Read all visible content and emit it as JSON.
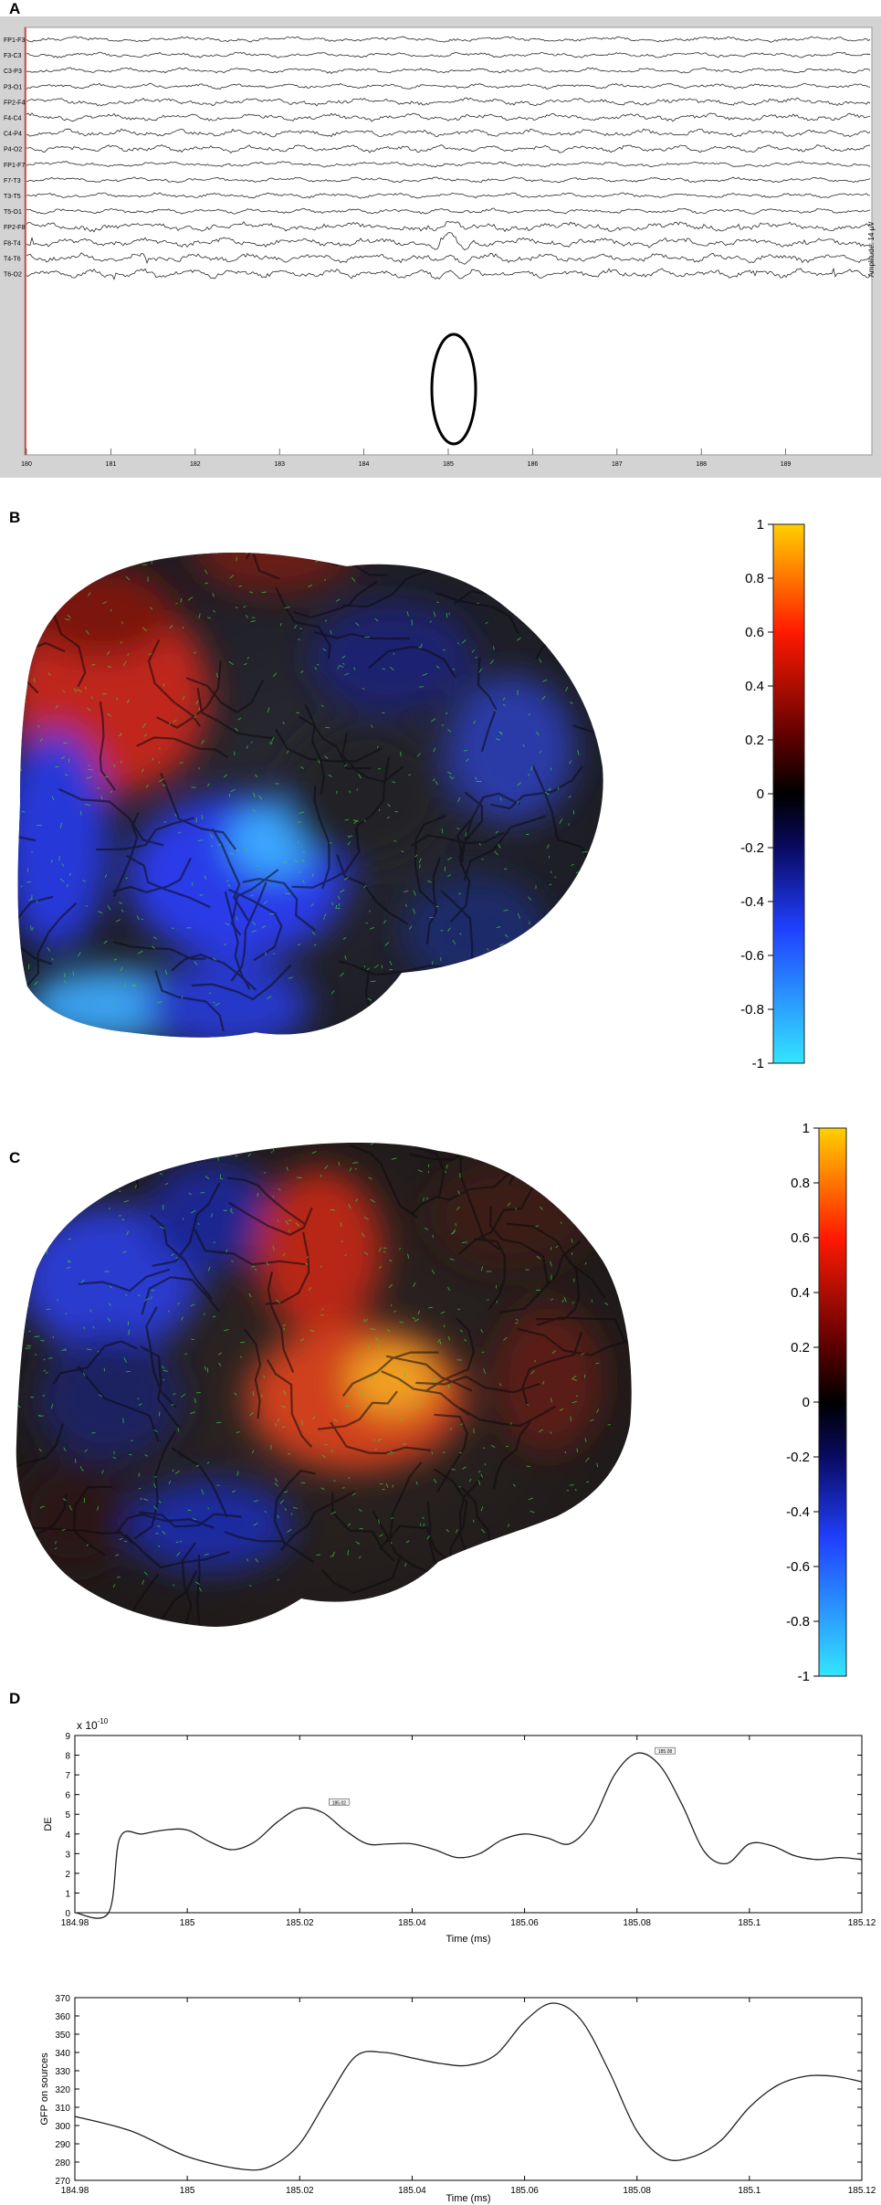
{
  "panels": {
    "a": "A",
    "b": "B",
    "c": "C",
    "d": "D"
  },
  "chart_data": [
    {
      "type": "line",
      "panel": "A",
      "channels": [
        "FP1-F3",
        "F3-C3",
        "C3-P3",
        "P3-O1",
        "FP2-F4",
        "F4-C4",
        "C4-P4",
        "P4-O2",
        "FP1-F7",
        "F7-T3",
        "T3-T5",
        "T5-O1",
        "FP2-F8",
        "F8-T4",
        "T4-T6",
        "T6-O2"
      ],
      "x_ticks": [
        "180",
        "181",
        "182",
        "183",
        "184",
        "185",
        "186",
        "187",
        "188",
        "189"
      ],
      "x_range": [
        180,
        190
      ],
      "right_label": "Amplitude: 14 µV",
      "annotation": {
        "type": "ellipse",
        "time": 185,
        "channels": [
          "FP2-F8",
          "F8-T4",
          "T4-T6"
        ]
      }
    },
    {
      "type": "heatmap",
      "panel": "B",
      "colorbar_ticks": [
        "1",
        "0.8",
        "0.6",
        "0.4",
        "0.2",
        "0",
        "-0.2",
        "-0.4",
        "-0.6",
        "-0.8",
        "-1"
      ],
      "range": [
        -1,
        1
      ],
      "colormap": [
        "#33e5ff",
        "#2040ff",
        "#0a0a60",
        "#000000",
        "#5a0000",
        "#ff1a00",
        "#ffd000"
      ]
    },
    {
      "type": "heatmap",
      "panel": "C",
      "colorbar_ticks": [
        "1",
        "0.8",
        "0.6",
        "0.4",
        "0.2",
        "0",
        "-0.2",
        "-0.4",
        "-0.6",
        "-0.8",
        "-1"
      ],
      "range": [
        -1,
        1
      ],
      "colormap": [
        "#33e5ff",
        "#2040ff",
        "#0a0a60",
        "#000000",
        "#5a0000",
        "#ff1a00",
        "#ffd000"
      ]
    },
    {
      "type": "line",
      "panel": "D-top",
      "xlabel": "Time (ms)",
      "ylabel": "DE",
      "exponent_label": "x 10",
      "exponent_power": "-10",
      "xlim": [
        184.98,
        185.12
      ],
      "ylim": [
        0,
        9
      ],
      "x_ticks": [
        "184.98",
        "185",
        "185.02",
        "185.04",
        "185.06",
        "185.08",
        "185.1",
        "185.12"
      ],
      "y_ticks": [
        "0",
        "1",
        "2",
        "3",
        "4",
        "5",
        "6",
        "7",
        "8",
        "9"
      ],
      "x": [
        184.98,
        184.986,
        184.988,
        184.992,
        184.996,
        185.0,
        185.004,
        185.008,
        185.012,
        185.016,
        185.02,
        185.024,
        185.028,
        185.032,
        185.036,
        185.04,
        185.044,
        185.048,
        185.052,
        185.056,
        185.06,
        185.064,
        185.068,
        185.072,
        185.076,
        185.08,
        185.084,
        185.088,
        185.092,
        185.096,
        185.1,
        185.104,
        185.108,
        185.112,
        185.116,
        185.12
      ],
      "y": [
        0,
        0,
        3.8,
        4.0,
        4.2,
        4.2,
        3.6,
        3.2,
        3.6,
        4.6,
        5.3,
        5.1,
        4.2,
        3.5,
        3.5,
        3.5,
        3.2,
        2.8,
        3.0,
        3.7,
        4.0,
        3.8,
        3.5,
        4.6,
        7.0,
        8.1,
        7.5,
        5.5,
        3.1,
        2.5,
        3.5,
        3.4,
        2.9,
        2.7,
        2.8,
        2.7
      ],
      "peak_labels": [
        {
          "x": 185.027,
          "y": 5.6,
          "text": "185.02"
        },
        {
          "x": 185.085,
          "y": 8.2,
          "text": "185.08"
        }
      ]
    },
    {
      "type": "line",
      "panel": "D-bottom",
      "xlabel": "Time (ms)",
      "ylabel": "GFP on sources",
      "xlim": [
        184.98,
        185.12
      ],
      "ylim": [
        270,
        370
      ],
      "x_ticks": [
        "184.98",
        "185",
        "185.02",
        "185.04",
        "185.06",
        "185.08",
        "185.1",
        "185.12"
      ],
      "y_ticks": [
        "270",
        "280",
        "290",
        "300",
        "310",
        "320",
        "330",
        "340",
        "350",
        "360",
        "370"
      ],
      "x": [
        184.98,
        184.99,
        185.0,
        185.01,
        185.015,
        185.02,
        185.025,
        185.03,
        185.035,
        185.04,
        185.045,
        185.05,
        185.055,
        185.06,
        185.065,
        185.07,
        185.075,
        185.08,
        185.085,
        185.09,
        185.095,
        185.1,
        185.105,
        185.11,
        185.115,
        185.12
      ],
      "y": [
        305,
        297,
        283,
        276,
        278,
        290,
        315,
        338,
        340,
        337,
        334,
        333,
        339,
        357,
        367,
        358,
        330,
        297,
        282,
        283,
        292,
        310,
        322,
        327,
        327,
        324
      ]
    }
  ]
}
